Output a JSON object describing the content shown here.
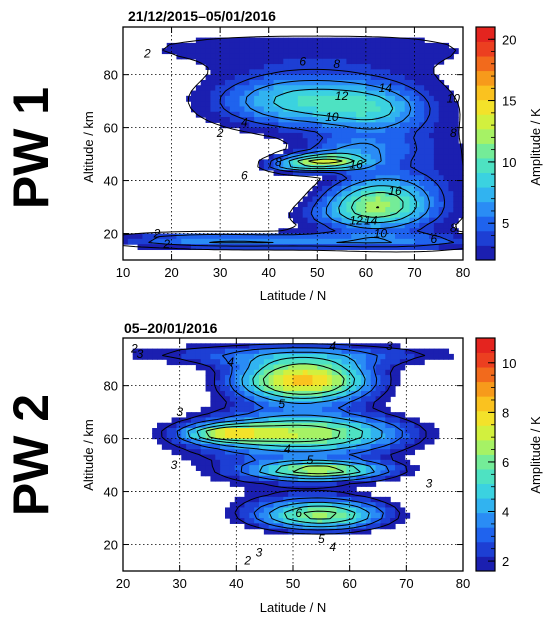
{
  "chart_data": [
    {
      "type": "heatmap",
      "panel_label": "PW 1",
      "title": "21/12/2015–05/01/2016",
      "xlabel": "Latitude / N",
      "ylabel": "Altitude / km",
      "xlim": [
        10,
        80
      ],
      "ylim": [
        10,
        98
      ],
      "xticks": [
        10,
        20,
        30,
        40,
        50,
        60,
        70,
        80
      ],
      "yticks": [
        20,
        40,
        60,
        80
      ],
      "grid": true,
      "colorbar": {
        "label": "Amplitude / K",
        "range": [
          2,
          21
        ],
        "ticks": [
          5,
          10,
          15,
          20
        ],
        "levels": [
          2,
          3,
          4,
          5,
          6,
          7,
          8,
          9,
          10,
          11,
          12,
          13,
          14,
          15,
          16,
          17,
          18,
          19,
          20
        ]
      },
      "blobs": [
        {
          "x": 45,
          "y": 90,
          "sx": 55,
          "sy": 9,
          "a": 2.5
        },
        {
          "x": 48,
          "y": 70,
          "sx": 20,
          "sy": 11,
          "a": 9
        },
        {
          "x": 62,
          "y": 66,
          "sx": 9,
          "sy": 8,
          "a": 3
        },
        {
          "x": 57,
          "y": 52,
          "sx": 11,
          "sy": 5,
          "a": 4
        },
        {
          "x": 51,
          "y": 47,
          "sx": 9,
          "sy": 3,
          "a": 11
        },
        {
          "x": 44,
          "y": 45,
          "sx": 6,
          "sy": 2.5,
          "a": 3
        },
        {
          "x": 62,
          "y": 32,
          "sx": 11,
          "sy": 9,
          "a": 9
        },
        {
          "x": 57,
          "y": 26,
          "sx": 15,
          "sy": 6,
          "a": 3
        },
        {
          "x": 50,
          "y": 17,
          "sx": 40,
          "sy": 3,
          "a": 5
        },
        {
          "x": 26,
          "y": 18,
          "sx": 18,
          "sy": 3,
          "a": 3
        },
        {
          "x": 70,
          "y": 45,
          "sx": 15,
          "sy": 30,
          "a": 3
        }
      ],
      "contour_levels": [
        2,
        4,
        6,
        8,
        10,
        12,
        14,
        16
      ],
      "contour_labels": [
        {
          "text": "2",
          "x": 15,
          "y": 88
        },
        {
          "text": "6",
          "x": 47,
          "y": 85
        },
        {
          "text": "8",
          "x": 54,
          "y": 84
        },
        {
          "text": "14",
          "x": 64,
          "y": 75
        },
        {
          "text": "12",
          "x": 55,
          "y": 72
        },
        {
          "text": "10",
          "x": 53,
          "y": 64
        },
        {
          "text": "10",
          "x": 78,
          "y": 71
        },
        {
          "text": "4",
          "x": 35,
          "y": 62
        },
        {
          "text": "2",
          "x": 30,
          "y": 58
        },
        {
          "text": "8",
          "x": 42,
          "y": 47
        },
        {
          "text": "16",
          "x": 58,
          "y": 46
        },
        {
          "text": "6",
          "x": 35,
          "y": 42
        },
        {
          "text": "16",
          "x": 66,
          "y": 36
        },
        {
          "text": "12",
          "x": 58,
          "y": 25
        },
        {
          "text": "14",
          "x": 61,
          "y": 25
        },
        {
          "text": "10",
          "x": 63,
          "y": 20
        },
        {
          "text": "2",
          "x": 17,
          "y": 20
        },
        {
          "text": "2",
          "x": 19,
          "y": 16
        },
        {
          "text": "6",
          "x": 74,
          "y": 18
        },
        {
          "text": "8",
          "x": 78,
          "y": 22
        },
        {
          "text": "8",
          "x": 78,
          "y": 58
        }
      ]
    },
    {
      "type": "heatmap",
      "panel_label": "PW 2",
      "title": "05–20/01/2016",
      "xlabel": "Latitude / N",
      "ylabel": "Altitude / km",
      "xlim": [
        20,
        80
      ],
      "ylim": [
        10,
        98
      ],
      "xticks": [
        20,
        30,
        40,
        50,
        60,
        70,
        80
      ],
      "yticks": [
        20,
        40,
        60,
        80
      ],
      "grid": true,
      "colorbar": {
        "label": "Amplitude / K",
        "range": [
          1.6,
          11
        ],
        "ticks": [
          2,
          4,
          6,
          8,
          10
        ],
        "levels": [
          2,
          2.5,
          3,
          3.5,
          4,
          4.5,
          5,
          5.5,
          6,
          6.5,
          7,
          7.5,
          8,
          8.5,
          9,
          9.5,
          10,
          10.5,
          11
        ]
      },
      "blobs": [
        {
          "x": 52,
          "y": 82,
          "sx": 12,
          "sy": 8,
          "a": 7.5
        },
        {
          "x": 38,
          "y": 62,
          "sx": 7,
          "sy": 3,
          "a": 3.5
        },
        {
          "x": 52,
          "y": 62,
          "sx": 18,
          "sy": 7,
          "a": 5
        },
        {
          "x": 55,
          "y": 48,
          "sx": 12,
          "sy": 3.5,
          "a": 5
        },
        {
          "x": 55,
          "y": 31,
          "sx": 12,
          "sy": 6,
          "a": 5.5
        },
        {
          "x": 50,
          "y": 92,
          "sx": 40,
          "sy": 5,
          "a": 2.5
        },
        {
          "x": 48,
          "y": 55,
          "sx": 28,
          "sy": 28,
          "a": 2
        }
      ],
      "contour_levels": [
        2,
        3,
        4,
        5,
        6
      ],
      "contour_labels": [
        {
          "text": "2",
          "x": 22,
          "y": 94
        },
        {
          "text": "3",
          "x": 23,
          "y": 92
        },
        {
          "text": "4",
          "x": 39,
          "y": 89
        },
        {
          "text": "4",
          "x": 57,
          "y": 95
        },
        {
          "text": "3",
          "x": 67,
          "y": 95
        },
        {
          "text": "5",
          "x": 48,
          "y": 73
        },
        {
          "text": "3",
          "x": 30,
          "y": 70
        },
        {
          "text": "4",
          "x": 49,
          "y": 56
        },
        {
          "text": "5",
          "x": 53,
          "y": 52
        },
        {
          "text": "3",
          "x": 29,
          "y": 50
        },
        {
          "text": "3",
          "x": 74,
          "y": 43
        },
        {
          "text": "6",
          "x": 51,
          "y": 32
        },
        {
          "text": "5",
          "x": 55,
          "y": 22
        },
        {
          "text": "4",
          "x": 57,
          "y": 19
        },
        {
          "text": "3",
          "x": 44,
          "y": 17
        },
        {
          "text": "2",
          "x": 42,
          "y": 14
        }
      ]
    }
  ]
}
